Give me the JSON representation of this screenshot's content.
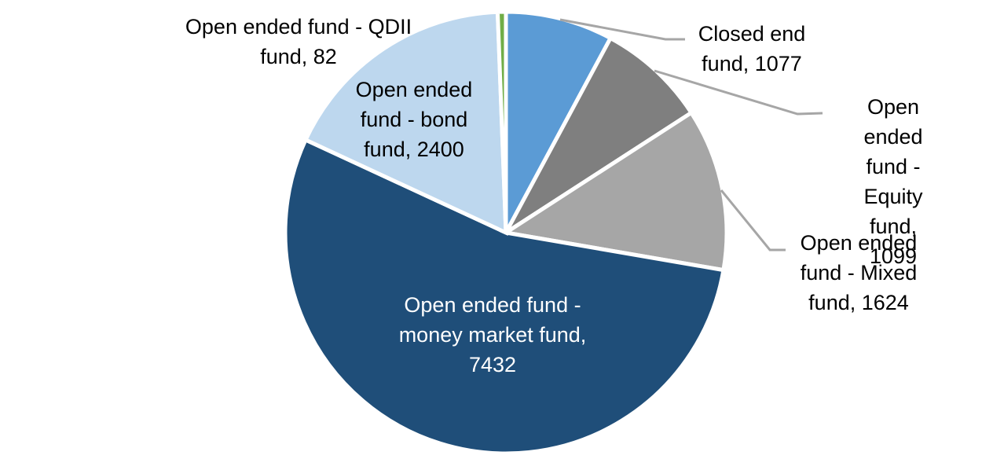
{
  "chart_data": {
    "type": "pie",
    "title": "",
    "legend_position": "none",
    "total": 13714,
    "direction": "clockwise",
    "start_angle_deg": 0,
    "slice_border_color": "#FFFFFF",
    "leader_line_color": "#A6A6A6",
    "background": "#FFFFFF",
    "slices": [
      {
        "name": "Closed end fund",
        "value": 1077,
        "color": "#5B9BD5",
        "label_color": "#000000",
        "callout": "Closed end\nfund, 1077"
      },
      {
        "name": "Open ended fund - Equity fund",
        "value": 1099,
        "color": "#7F7F7F",
        "label_color": "#000000",
        "callout": "Open ended\nfund - Equity\nfund, 1099"
      },
      {
        "name": "Open ended fund - Mixed fund",
        "value": 1624,
        "color": "#A6A6A6",
        "label_color": "#000000",
        "callout": "Open ended\nfund - Mixed\nfund, 1624"
      },
      {
        "name": "Open ended fund - money market fund",
        "value": 7432,
        "color": "#1F4E79",
        "label_color": "#FFFFFF",
        "callout": "Open ended fund -\nmoney market fund,\n7432"
      },
      {
        "name": "Open ended fund - bond fund",
        "value": 2400,
        "color": "#BDD7EE",
        "label_color": "#000000",
        "callout": "Open ended\nfund - bond\nfund, 2400"
      },
      {
        "name": "Open ended fund - QDII fund",
        "value": 82,
        "color": "#70AD47",
        "label_color": "#000000",
        "callout": "Open ended fund - QDII\nfund, 82"
      }
    ]
  }
}
